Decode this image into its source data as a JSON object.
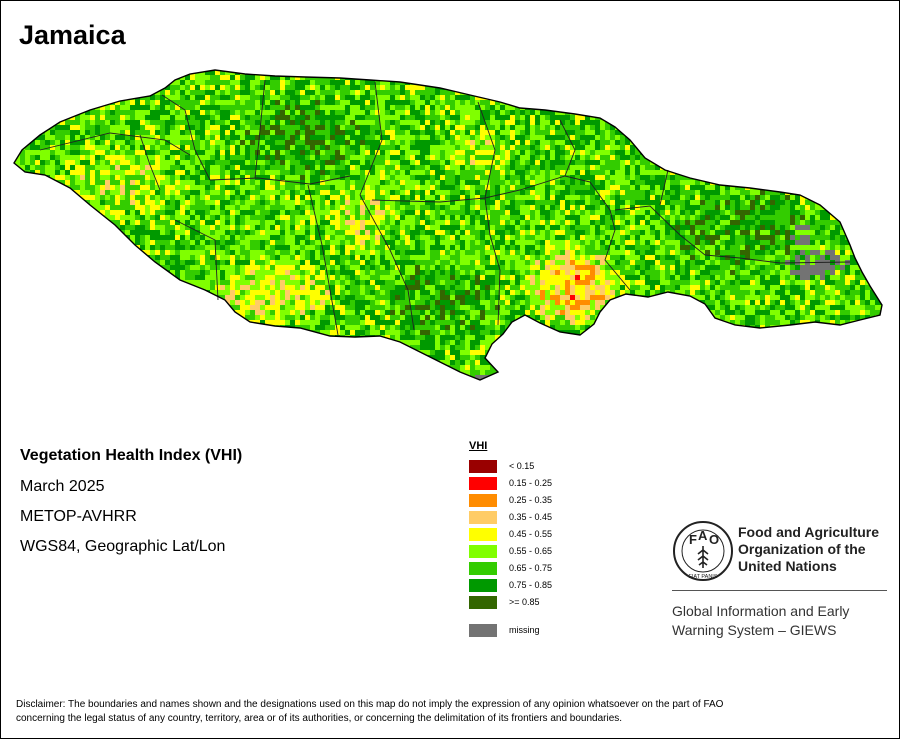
{
  "title": "Jamaica",
  "info": {
    "index_name": "Vegetation Health Index (VHI)",
    "period": "March 2025",
    "sensor": "METOP-AVHRR",
    "projection": "WGS84, Geographic Lat/Lon"
  },
  "legend": {
    "title": "VHI",
    "items": [
      {
        "label": "< 0.15",
        "color": "#990000"
      },
      {
        "label": "0.15 - 0.25",
        "color": "#ff0000"
      },
      {
        "label": "0.25 - 0.35",
        "color": "#ff8c00"
      },
      {
        "label": "0.35 - 0.45",
        "color": "#ffcc66"
      },
      {
        "label": "0.45 - 0.55",
        "color": "#ffff00"
      },
      {
        "label": "0.55 - 0.65",
        "color": "#80ff00"
      },
      {
        "label": "0.65 - 0.75",
        "color": "#33cc00"
      },
      {
        "label": "0.75 - 0.85",
        "color": "#009900"
      },
      {
        "label": ">= 0.85",
        "color": "#336600"
      }
    ],
    "missing": {
      "label": "missing",
      "color": "#737373"
    }
  },
  "organization": {
    "logo_icon": "fao-emblem-icon",
    "logo_letters": [
      "F",
      "A",
      "O"
    ],
    "logo_motto": "FIAT PANIS",
    "name_lines": [
      "Food and Agriculture",
      "Organization of the",
      "United Nations"
    ],
    "program_lines": [
      "Global Information and Early",
      "Warning System – GIEWS"
    ]
  },
  "disclaimer_lines": [
    "Disclaimer: The boundaries and names shown and the designations used on this map do not imply the expression of any opinion whatsoever on the part of FAO",
    "concerning the legal status of any country, territory, area or of its authorities, or concerning the delimitation of its frontiers and boundaries."
  ]
}
